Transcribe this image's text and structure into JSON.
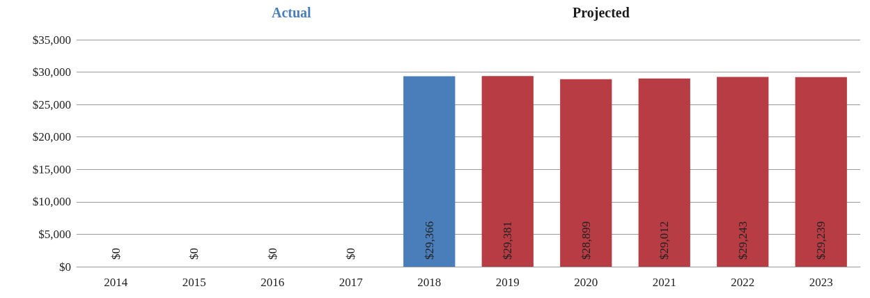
{
  "chart_data": {
    "type": "bar",
    "categories": [
      "2014",
      "2015",
      "2016",
      "2017",
      "2018",
      "2019",
      "2020",
      "2021",
      "2022",
      "2023"
    ],
    "values": [
      0,
      0,
      0,
      0,
      29366,
      29381,
      28899,
      29012,
      29243,
      29239
    ],
    "colors": [
      "#4a7ebb",
      "#4a7ebb",
      "#4a7ebb",
      "#4a7ebb",
      "#4a7ebb",
      "#b83c44",
      "#b83c44",
      "#b83c44",
      "#b83c44",
      "#b83c44"
    ],
    "value_labels": [
      "$0",
      "$0",
      "$0",
      "$0",
      "$29,366",
      "$29,381",
      "$28,899",
      "$29,012",
      "$29,243",
      "$29,239"
    ],
    "ylim": [
      0,
      35000
    ],
    "yticks": [
      {
        "value": 0,
        "label": "$0"
      },
      {
        "value": 5000,
        "label": "$5,000"
      },
      {
        "value": 10000,
        "label": "$10,000"
      },
      {
        "value": 15000,
        "label": "$15,000"
      },
      {
        "value": 20000,
        "label": "$20,000"
      },
      {
        "value": 25000,
        "label": "$25,000"
      },
      {
        "value": 30000,
        "label": "$30,000"
      },
      {
        "value": 35000,
        "label": "$35,000"
      }
    ],
    "grid": "y",
    "annotations": [
      "Actual",
      "Projected"
    ]
  }
}
